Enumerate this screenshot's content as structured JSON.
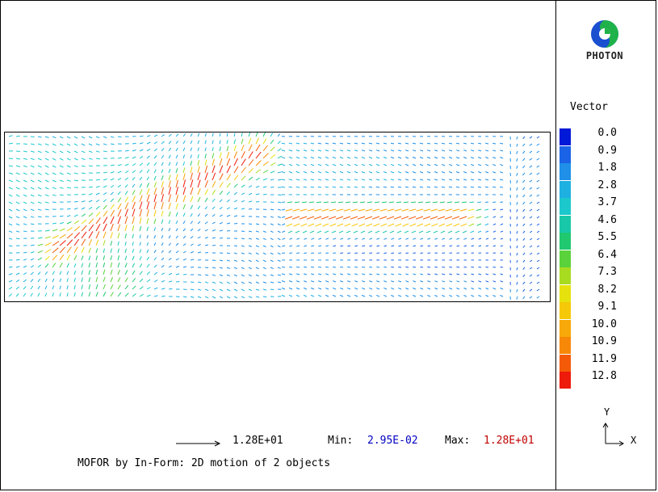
{
  "logo": {
    "text": "PHOTON",
    "icon": "photon-logo-icon",
    "colors": [
      "#1a4fd0",
      "#1fb24a"
    ]
  },
  "legend": {
    "title": "Vector",
    "entries": [
      {
        "value": "0.0",
        "color": "#0018d8"
      },
      {
        "value": "0.9",
        "color": "#1a63e6"
      },
      {
        "value": "1.8",
        "color": "#1f8fe8"
      },
      {
        "value": "2.8",
        "color": "#1fb0e2"
      },
      {
        "value": "3.7",
        "color": "#1cc8cc"
      },
      {
        "value": "4.6",
        "color": "#19c8a8"
      },
      {
        "value": "5.5",
        "color": "#20c870"
      },
      {
        "value": "6.4",
        "color": "#5ad23c"
      },
      {
        "value": "7.3",
        "color": "#a8dc20"
      },
      {
        "value": "8.2",
        "color": "#e6e20e"
      },
      {
        "value": "9.1",
        "color": "#f6c80a"
      },
      {
        "value": "10.0",
        "color": "#f8a808"
      },
      {
        "value": "10.9",
        "color": "#f88808"
      },
      {
        "value": "11.9",
        "color": "#f45a08"
      },
      {
        "value": "12.8",
        "color": "#ee1a0a"
      }
    ]
  },
  "axes": {
    "y_label": "Y",
    "x_label": "X"
  },
  "footer": {
    "scale_value": "1.28E+01",
    "min_label": "Min:",
    "min_value": "2.95E-02",
    "max_label": "Max:",
    "max_value": "1.28E+01",
    "caption": "MOFOR by In-Form: 2D motion of 2 objects"
  }
}
